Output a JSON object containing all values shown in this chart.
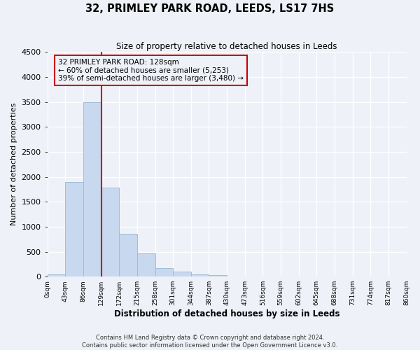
{
  "title": "32, PRIMLEY PARK ROAD, LEEDS, LS17 7HS",
  "subtitle": "Size of property relative to detached houses in Leeds",
  "xlabel": "Distribution of detached houses by size in Leeds",
  "ylabel": "Number of detached properties",
  "bar_values": [
    50,
    1900,
    3500,
    1780,
    860,
    460,
    175,
    100,
    50,
    30,
    0,
    0,
    0,
    0,
    0,
    0,
    0,
    0,
    0
  ],
  "bin_labels": [
    "0sqm",
    "43sqm",
    "86sqm",
    "129sqm",
    "172sqm",
    "215sqm",
    "258sqm",
    "301sqm",
    "344sqm",
    "387sqm",
    "430sqm",
    "473sqm",
    "516sqm",
    "559sqm",
    "602sqm",
    "645sqm",
    "688sqm",
    "731sqm",
    "774sqm",
    "817sqm",
    "860sqm"
  ],
  "bar_color": "#c8d8ee",
  "bar_edge_color": "#a0bcd8",
  "vline_x": 129,
  "vline_color": "#cc0000",
  "bin_width": 43,
  "annotation_text": "32 PRIMLEY PARK ROAD: 128sqm\n← 60% of detached houses are smaller (5,253)\n39% of semi-detached houses are larger (3,480) →",
  "annotation_box_color": "#cc0000",
  "ylim": [
    0,
    4500
  ],
  "yticks": [
    0,
    500,
    1000,
    1500,
    2000,
    2500,
    3000,
    3500,
    4000,
    4500
  ],
  "footer_line1": "Contains HM Land Registry data © Crown copyright and database right 2024.",
  "footer_line2": "Contains public sector information licensed under the Open Government Licence v3.0.",
  "bg_color": "#eef2f8"
}
